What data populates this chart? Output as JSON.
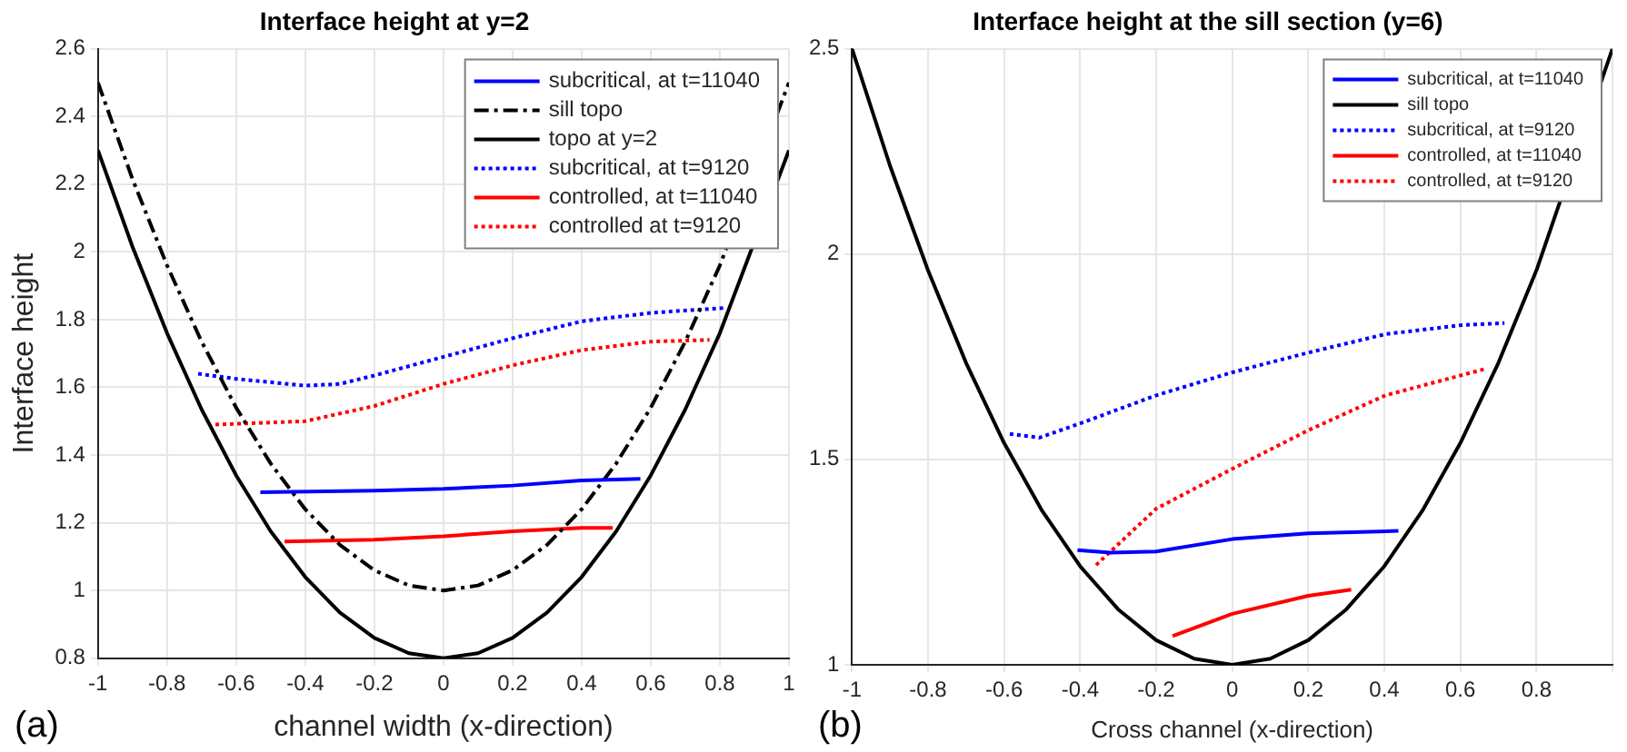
{
  "chart_data": [
    {
      "type": "line",
      "title": "Interface height at y=2",
      "xlabel": "channel width (x-direction)",
      "ylabel": "Interface height",
      "xlim": [
        -1,
        1
      ],
      "ylim": [
        0.8,
        2.6
      ],
      "xticks": [
        -1,
        -0.8,
        -0.6,
        -0.4,
        -0.2,
        0,
        0.2,
        0.4,
        0.6,
        0.8,
        1
      ],
      "yticks": [
        0.8,
        1,
        1.2,
        1.4,
        1.6,
        1.8,
        2,
        2.2,
        2.4,
        2.6
      ],
      "grid": true,
      "legend": "top right",
      "marker": "none",
      "annotations": [
        "(a)"
      ],
      "series": [
        {
          "name": "subcritical, at t=11040",
          "color": "#0000ff",
          "line_style": "solid",
          "x": [
            -0.53,
            -0.2,
            0,
            0.2,
            0.4,
            0.57
          ],
          "values": [
            1.29,
            1.295,
            1.3,
            1.31,
            1.325,
            1.33
          ]
        },
        {
          "name": "sill topo",
          "color": "#000000",
          "line_style": "dashed",
          "x": [
            -1,
            -0.9,
            -0.8,
            -0.7,
            -0.6,
            -0.5,
            -0.4,
            -0.3,
            -0.2,
            -0.1,
            0,
            0.1,
            0.2,
            0.3,
            0.4,
            0.5,
            0.6,
            0.7,
            0.8,
            0.9,
            1
          ],
          "values": [
            2.5,
            2.215,
            1.96,
            1.735,
            1.54,
            1.375,
            1.24,
            1.135,
            1.06,
            1.015,
            1,
            1.015,
            1.06,
            1.135,
            1.24,
            1.375,
            1.54,
            1.735,
            1.96,
            null,
            2.5
          ]
        },
        {
          "name": "topo at y=2",
          "color": "#000000",
          "line_style": "solid",
          "x": [
            -1,
            -0.9,
            -0.8,
            -0.7,
            -0.6,
            -0.5,
            -0.4,
            -0.3,
            -0.2,
            -0.1,
            0,
            0.1,
            0.2,
            0.3,
            0.4,
            0.5,
            0.6,
            0.7,
            0.8,
            0.9,
            1
          ],
          "values": [
            2.3,
            2.015,
            1.76,
            1.535,
            1.34,
            1.175,
            1.04,
            0.935,
            0.86,
            0.815,
            0.8,
            0.815,
            0.86,
            0.935,
            1.04,
            1.175,
            1.34,
            1.535,
            1.76,
            null,
            2.3
          ]
        },
        {
          "name": "subcritical, at t=9120",
          "color": "#0000ff",
          "line_style": "dotted",
          "x": [
            -0.71,
            -0.6,
            -0.4,
            -0.3,
            -0.2,
            0,
            0.2,
            0.4,
            0.6,
            0.82
          ],
          "values": [
            1.64,
            1.625,
            1.605,
            1.61,
            1.635,
            1.69,
            1.745,
            1.795,
            1.82,
            1.835
          ]
        },
        {
          "name": "controlled, at t=11040",
          "color": "#ff0000",
          "line_style": "solid",
          "x": [
            -0.46,
            -0.2,
            0,
            0.2,
            0.4,
            0.49
          ],
          "values": [
            1.145,
            1.15,
            1.16,
            1.175,
            1.185,
            1.185
          ]
        },
        {
          "name": "controlled at t=9120",
          "color": "#ff0000",
          "line_style": "dotted",
          "x": [
            -0.66,
            -0.4,
            -0.2,
            0,
            0.2,
            0.4,
            0.6,
            0.77
          ],
          "values": [
            1.49,
            1.5,
            1.545,
            1.61,
            1.665,
            1.71,
            1.735,
            1.74
          ]
        }
      ]
    },
    {
      "type": "line",
      "title": "Interface height at the sill section (y=6)",
      "xlabel": "Cross channel (x-direction)",
      "xlim": [
        -1,
        1
      ],
      "ylim": [
        1,
        2.5
      ],
      "xticks": [
        -1,
        -0.8,
        -0.6,
        -0.4,
        -0.2,
        0,
        0.2,
        0.4,
        0.6,
        0.8,
        {
          "value": 1,
          "label": null
        }
      ],
      "yticks": [
        1,
        1.5,
        2,
        2.5
      ],
      "grid": true,
      "legend": "top right",
      "marker": "none",
      "annotations": [
        "(b)"
      ],
      "series": [
        {
          "name": "subcritical, at t=11040",
          "color": "#0000ff",
          "line_style": "solid",
          "x": [
            -0.407,
            -0.32,
            -0.2,
            0,
            0.2,
            0.437
          ],
          "values": [
            1.279,
            1.273,
            1.276,
            1.306,
            1.32,
            1.326
          ]
        },
        {
          "name": "sill topo",
          "color": "#000000",
          "line_style": "solid",
          "x": [
            -1,
            -0.9,
            -0.8,
            -0.7,
            -0.6,
            -0.5,
            -0.4,
            -0.3,
            -0.2,
            -0.1,
            0,
            0.1,
            0.2,
            0.3,
            0.4,
            0.5,
            0.6,
            0.7,
            0.8,
            0.9,
            1
          ],
          "values": [
            2.5,
            2.215,
            1.96,
            1.735,
            1.54,
            1.375,
            1.24,
            1.135,
            1.06,
            1.015,
            1,
            1.015,
            1.06,
            1.135,
            1.24,
            1.375,
            1.54,
            1.735,
            1.96,
            null,
            2.5
          ]
        },
        {
          "name": "subcritical, at t=9120",
          "color": "#0000ff",
          "line_style": "dotted",
          "x": [
            -0.585,
            -0.507,
            -0.396,
            -0.2,
            0,
            0.2,
            0.403,
            0.604,
            0.716
          ],
          "values": [
            1.562,
            1.553,
            1.589,
            1.656,
            1.712,
            1.76,
            1.805,
            1.827,
            1.832
          ]
        },
        {
          "name": "controlled, at t=11040",
          "color": "#ff0000",
          "line_style": "solid",
          "x": [
            -0.157,
            0,
            0.2,
            0.313
          ],
          "values": [
            1.07,
            1.124,
            1.168,
            1.183
          ]
        },
        {
          "name": "controlled, at t=9120",
          "color": "#ff0000",
          "line_style": "dotted",
          "x": [
            -0.358,
            -0.2,
            0,
            0.2,
            0.403,
            0.664
          ],
          "values": [
            1.243,
            1.38,
            1.477,
            1.571,
            1.656,
            1.72
          ]
        }
      ]
    }
  ]
}
